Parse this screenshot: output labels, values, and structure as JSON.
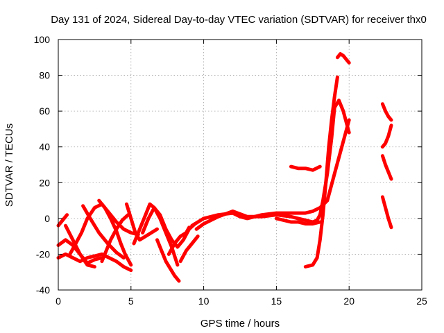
{
  "chart_data": {
    "type": "scatter",
    "title": "Day 131 of 2024, Sidereal Day-to-day VTEC variation (SDTVAR) for receiver thx0",
    "xlabel": "GPS time / hours",
    "ylabel": "SDTVAR / TECUs",
    "xlim": [
      0,
      25
    ],
    "ylim": [
      -40,
      100
    ],
    "xticks": [
      "0",
      "5",
      "10",
      "15",
      "20",
      "25"
    ],
    "yticks": [
      "-40",
      "-20",
      "0",
      "20",
      "40",
      "60",
      "80",
      "100"
    ],
    "grid": true,
    "marker": "+",
    "color": "#ff0000",
    "series": [
      {
        "name": "s1",
        "x": [
          0,
          0.5,
          1.0,
          1.5,
          2.0,
          2.5,
          3.0,
          3.5,
          4.0,
          4.5,
          5.0
        ],
        "y": [
          -22,
          -20,
          -22,
          -24,
          -22,
          -21,
          -20,
          -22,
          -24,
          -27,
          -29
        ]
      },
      {
        "name": "s2",
        "x": [
          0,
          0.5,
          1.0,
          1.5,
          2.0,
          2.5,
          3.0
        ],
        "y": [
          -15,
          -12,
          -15,
          -20,
          -25,
          -23,
          -22
        ]
      },
      {
        "name": "s3",
        "x": [
          0,
          0.2,
          0.4,
          0.6
        ],
        "y": [
          -4,
          -2,
          0,
          2
        ]
      },
      {
        "name": "s4",
        "x": [
          0.5,
          1.0,
          1.5,
          2.0,
          2.5
        ],
        "y": [
          -4,
          -12,
          -20,
          -26,
          -27
        ]
      },
      {
        "name": "s5",
        "x": [
          0.8,
          1.2,
          1.6,
          2.0,
          2.5,
          3.0,
          3.5,
          4.0,
          4.5,
          5.0,
          5.5
        ],
        "y": [
          -20,
          -14,
          -8,
          0,
          6,
          8,
          3,
          -2,
          -6,
          -8,
          -9
        ]
      },
      {
        "name": "s6",
        "x": [
          1.7,
          2.2,
          2.8,
          3.4,
          4.0,
          4.5
        ],
        "y": [
          7,
          0,
          -8,
          -14,
          -19,
          -22
        ]
      },
      {
        "name": "s7",
        "x": [
          2.8,
          3.2,
          3.6,
          4.0,
          4.3,
          4.6,
          5.0
        ],
        "y": [
          10,
          6,
          0,
          -7,
          -14,
          -20,
          -26
        ]
      },
      {
        "name": "s8",
        "x": [
          3.0,
          3.3,
          3.6,
          4.0,
          4.4,
          4.8
        ],
        "y": [
          -24,
          -18,
          -12,
          -6,
          -1,
          2
        ]
      },
      {
        "name": "s9",
        "x": [
          4.7,
          5.0,
          5.3,
          5.6,
          6.0,
          6.4,
          6.8
        ],
        "y": [
          8,
          0,
          -8,
          -12,
          -10,
          -8,
          -6
        ]
      },
      {
        "name": "s10",
        "x": [
          5.2,
          5.6,
          6.0,
          6.3,
          6.6,
          7.0,
          7.4,
          7.8,
          8.2
        ],
        "y": [
          -14,
          -6,
          2,
          8,
          6,
          0,
          -8,
          -16,
          -26
        ]
      },
      {
        "name": "s11",
        "x": [
          5.8,
          6.2,
          6.6,
          7.0,
          7.4,
          7.8,
          8.2,
          8.6,
          9.0,
          9.4
        ],
        "y": [
          -8,
          0,
          6,
          2,
          -6,
          -12,
          -16,
          -12,
          -6,
          -3
        ]
      },
      {
        "name": "s12",
        "x": [
          6.8,
          7.1,
          7.4,
          7.7,
          8.0,
          8.3
        ],
        "y": [
          -12,
          -18,
          -24,
          -28,
          -32,
          -35
        ]
      },
      {
        "name": "s13",
        "x": [
          7.6,
          8.0,
          8.4,
          8.8,
          9.0
        ],
        "y": [
          -20,
          -14,
          -10,
          -8,
          -5
        ]
      },
      {
        "name": "s14",
        "x": [
          8.4,
          8.8,
          9.2,
          9.6
        ],
        "y": [
          -24,
          -18,
          -14,
          -10
        ]
      },
      {
        "name": "s15",
        "x": [
          9.2,
          10.0,
          11.0,
          12.0,
          12.5,
          13.0,
          14.0,
          15.0,
          16.0,
          16.5,
          17.0,
          17.5,
          18.0,
          18.5,
          19.0,
          19.5,
          20.0
        ],
        "y": [
          -4,
          0,
          2,
          3,
          1,
          0,
          2,
          3,
          3,
          3,
          3,
          4,
          6,
          10,
          25,
          40,
          55
        ]
      },
      {
        "name": "s16",
        "x": [
          9.5,
          10.0,
          11.0,
          12.0,
          13.0,
          14.0,
          15.0,
          16.0,
          16.5,
          17.0,
          17.5,
          17.8,
          18.0,
          18.2,
          18.5,
          18.8,
          19.0,
          19.3,
          19.6,
          20.0
        ],
        "y": [
          -6,
          -3,
          1,
          4,
          1,
          1,
          2,
          1,
          0,
          -1,
          -2,
          -1,
          2,
          10,
          25,
          45,
          62,
          66,
          60,
          48
        ]
      },
      {
        "name": "s17",
        "x": [
          15.0,
          15.5,
          16.0,
          16.5,
          17.0,
          17.5,
          18.0
        ],
        "y": [
          0,
          -1,
          -2,
          -2,
          -3,
          -3,
          -2
        ]
      },
      {
        "name": "s18",
        "x": [
          16.0,
          16.5,
          17.0,
          17.5,
          18.0
        ],
        "y": [
          29,
          28,
          28,
          27,
          29
        ]
      },
      {
        "name": "s19",
        "x": [
          17.0,
          17.5,
          17.8,
          18.0,
          18.2,
          18.4,
          18.6,
          18.8,
          19.0,
          19.2
        ],
        "y": [
          -27,
          -26,
          -22,
          -12,
          2,
          20,
          40,
          55,
          68,
          79
        ]
      },
      {
        "name": "s20",
        "x": [
          19.2,
          19.4,
          19.6,
          19.8,
          20.0
        ],
        "y": [
          90,
          92,
          91,
          89,
          87
        ]
      },
      {
        "name": "s21",
        "x": [
          22.3,
          22.5,
          22.7,
          22.9
        ],
        "y": [
          64,
          60,
          57,
          55
        ]
      },
      {
        "name": "s22",
        "x": [
          22.3,
          22.5,
          22.7,
          22.9
        ],
        "y": [
          40,
          42,
          46,
          52
        ]
      },
      {
        "name": "s23",
        "x": [
          22.3,
          22.5,
          22.7,
          22.9
        ],
        "y": [
          35,
          30,
          26,
          22
        ]
      },
      {
        "name": "s24",
        "x": [
          22.3,
          22.5,
          22.7,
          22.9
        ],
        "y": [
          12,
          6,
          0,
          -5
        ]
      }
    ]
  }
}
